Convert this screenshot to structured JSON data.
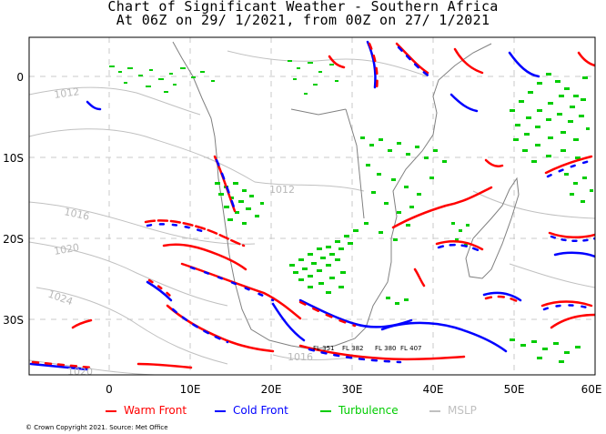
{
  "title": {
    "line1": "Chart of Significant Weather - Southern Africa",
    "line2": "At 06Z on 29/ 1/2021, from 00Z on 27/ 1/2021"
  },
  "axes": {
    "x_ticks": [
      "0",
      "10E",
      "20E",
      "30E",
      "40E",
      "50E",
      "60E"
    ],
    "y_ticks": [
      "0",
      "10S",
      "20S",
      "30S"
    ]
  },
  "mslp_labels": [
    "1012",
    "1012",
    "1016",
    "1020",
    "1024",
    "1016",
    "1020"
  ],
  "flight_levels": [
    "FL 351",
    "FL 382",
    "FL 380",
    "FL 407"
  ],
  "legend": {
    "warm_front": "Warm Front",
    "cold_front": "Cold Front",
    "turbulence": "Turbulence",
    "mslp": "MSLP"
  },
  "colors": {
    "warm_front": "#ff0000",
    "cold_front": "#0000ff",
    "turbulence": "#00cc00",
    "mslp": "#c0c0c0",
    "coast": "#808080",
    "grid": "#c8c8c8"
  },
  "copyright": "© Crown Copyright 2021. Source: Met Office"
}
